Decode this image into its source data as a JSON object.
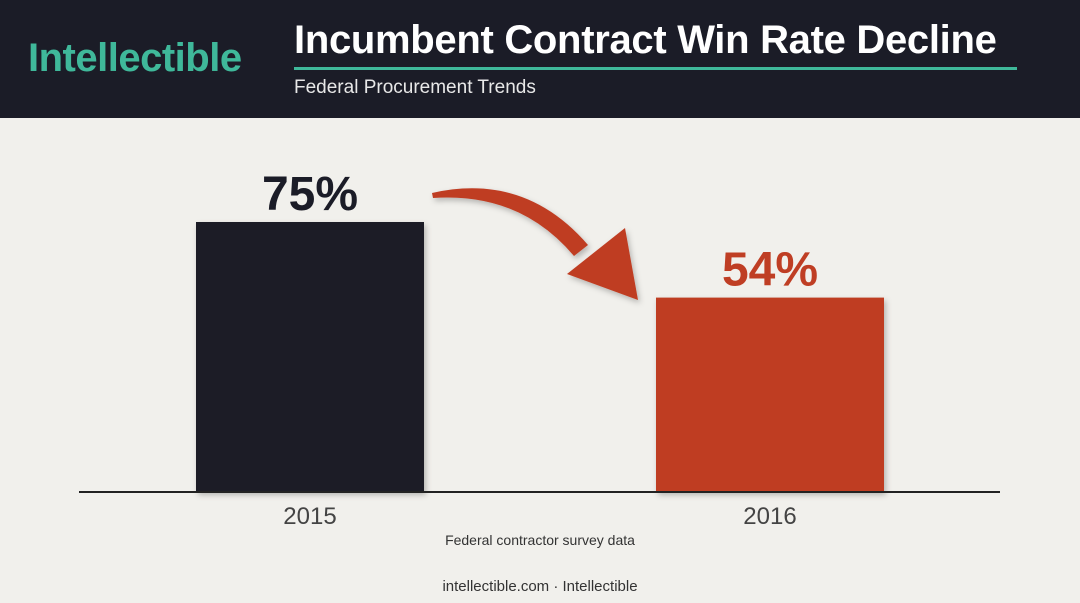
{
  "brand": {
    "name": "Intellectible"
  },
  "header": {
    "title": "Incumbent Contract Win Rate Decline",
    "subtitle": "Federal Procurement Trends"
  },
  "colors": {
    "header_bg": "#1b1c27",
    "accent": "#3fb89a",
    "bar_2015": "#1b1c27",
    "bar_2016": "#bf3e24",
    "arrow": "#bf3e24"
  },
  "chart_data": {
    "type": "bar",
    "categories": [
      "2015",
      "2016"
    ],
    "values": [
      75,
      54
    ],
    "value_labels": [
      "75%",
      "54%"
    ],
    "ylim": [
      0,
      100
    ],
    "grid": false,
    "annotation": "decline-arrow"
  },
  "source_note": "Federal contractor survey data",
  "footer": "intellectible.com · Intellectible"
}
